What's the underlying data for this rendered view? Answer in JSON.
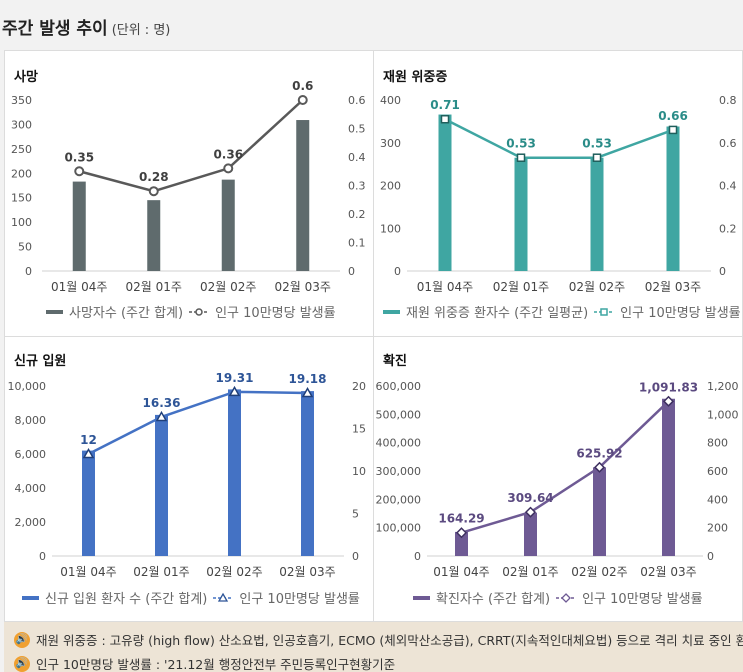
{
  "header": {
    "title": "주간 발생 추이",
    "unit": "(단위 : 명)"
  },
  "chart_data": [
    {
      "name": "death",
      "type": "bar+line",
      "title": "사망",
      "categories": [
        "01월 04주",
        "02월 01주",
        "02월 02주",
        "02월 03주"
      ],
      "bar": {
        "name": "사망자수 (주간 합계)",
        "values": [
          183,
          145,
          187,
          309
        ],
        "color": "#5f6b6d"
      },
      "line": {
        "name": "인구 10만명당 발생률",
        "values": [
          0.35,
          0.28,
          0.36,
          0.6
        ],
        "labels": [
          "0.35",
          "0.28",
          "0.36",
          "0.6"
        ],
        "color": "#595959",
        "label_color": "#404040",
        "marker": "circle"
      },
      "left_axis": {
        "range": [
          0,
          350
        ],
        "ticks": [
          "0",
          "50",
          "100",
          "150",
          "200",
          "250",
          "300",
          "350"
        ]
      },
      "right_axis": {
        "range": [
          0,
          0.6
        ],
        "ticks": [
          "0",
          "0.1",
          "0.2",
          "0.3",
          "0.4",
          "0.5",
          "0.6"
        ]
      }
    },
    {
      "name": "severe",
      "type": "bar+line",
      "title": "재원 위중증",
      "categories": [
        "01월 04주",
        "02월 01주",
        "02월 02주",
        "02월 03주"
      ],
      "bar": {
        "name": "재원 위중증 환자수 (주간 일평균)",
        "values": [
          366,
          265,
          265,
          338
        ],
        "color": "#3fa6a2"
      },
      "line": {
        "name": "인구 10만명당 발생률",
        "values": [
          0.71,
          0.53,
          0.53,
          0.66
        ],
        "labels": [
          "0.71",
          "0.53",
          "0.53",
          "0.66"
        ],
        "color": "#3fa6a2",
        "label_color": "#2a8c88",
        "marker": "square"
      },
      "left_axis": {
        "range": [
          0,
          400
        ],
        "ticks": [
          "0",
          "100",
          "200",
          "300",
          "400"
        ]
      },
      "right_axis": {
        "range": [
          0,
          0.8
        ],
        "ticks": [
          "0",
          "0.2",
          "0.4",
          "0.6",
          "0.8"
        ]
      }
    },
    {
      "name": "admission",
      "type": "bar+line",
      "title": "신규 입원",
      "categories": [
        "01월 04주",
        "02월 01주",
        "02월 02주",
        "02월 03주"
      ],
      "bar": {
        "name": "신규 입원 환자 수 (주간 합계)",
        "values": [
          6200,
          8300,
          9800,
          9700
        ],
        "color": "#4472c4"
      },
      "line": {
        "name": "인구 10만명당 발생률",
        "values": [
          12,
          16.36,
          19.31,
          19.18
        ],
        "labels": [
          "12",
          "16.36",
          "19.31",
          "19.18"
        ],
        "color": "#4472c4",
        "label_color": "#2e5597",
        "marker": "triangle"
      },
      "left_axis": {
        "range": [
          0,
          10000
        ],
        "ticks": [
          "0",
          "2,000",
          "4,000",
          "6,000",
          "8,000",
          "10,000"
        ]
      },
      "right_axis": {
        "range": [
          0,
          20
        ],
        "ticks": [
          "0",
          "5",
          "10",
          "15",
          "20"
        ]
      }
    },
    {
      "name": "confirmed",
      "type": "bar+line",
      "title": "확진",
      "categories": [
        "01월 04주",
        "02월 01주",
        "02월 02주",
        "02월 03주"
      ],
      "bar": {
        "name": "확진자수 (주간 합계)",
        "values": [
          85000,
          153000,
          313000,
          555000
        ],
        "color": "#6e5a94"
      },
      "line": {
        "name": "인구 10만명당 발생률",
        "values": [
          164.29,
          309.64,
          625.92,
          1091.83
        ],
        "labels": [
          "164.29",
          "309.64",
          "625.92",
          "1,091.83"
        ],
        "color": "#6e5a94",
        "label_color": "#5b4a80",
        "marker": "diamond"
      },
      "left_axis": {
        "range": [
          0,
          600000
        ],
        "ticks": [
          "0",
          "100,000",
          "200,000",
          "300,000",
          "400,000",
          "500,000",
          "600,000"
        ]
      },
      "right_axis": {
        "range": [
          0,
          1200
        ],
        "ticks": [
          "0",
          "200",
          "400",
          "600",
          "800",
          "1,000",
          "1,200"
        ]
      }
    }
  ],
  "notes": [
    "재원 위중증 : 고유량 (high flow) 산소요법, 인공호흡기, ECMO (체외막산소공급), CRRT(지속적인대체요법) 등으로 격리 치료 중인 환자",
    "인구 10만명당 발생률 : '21.12월 행정안전부 주민등록인구현황기준"
  ]
}
